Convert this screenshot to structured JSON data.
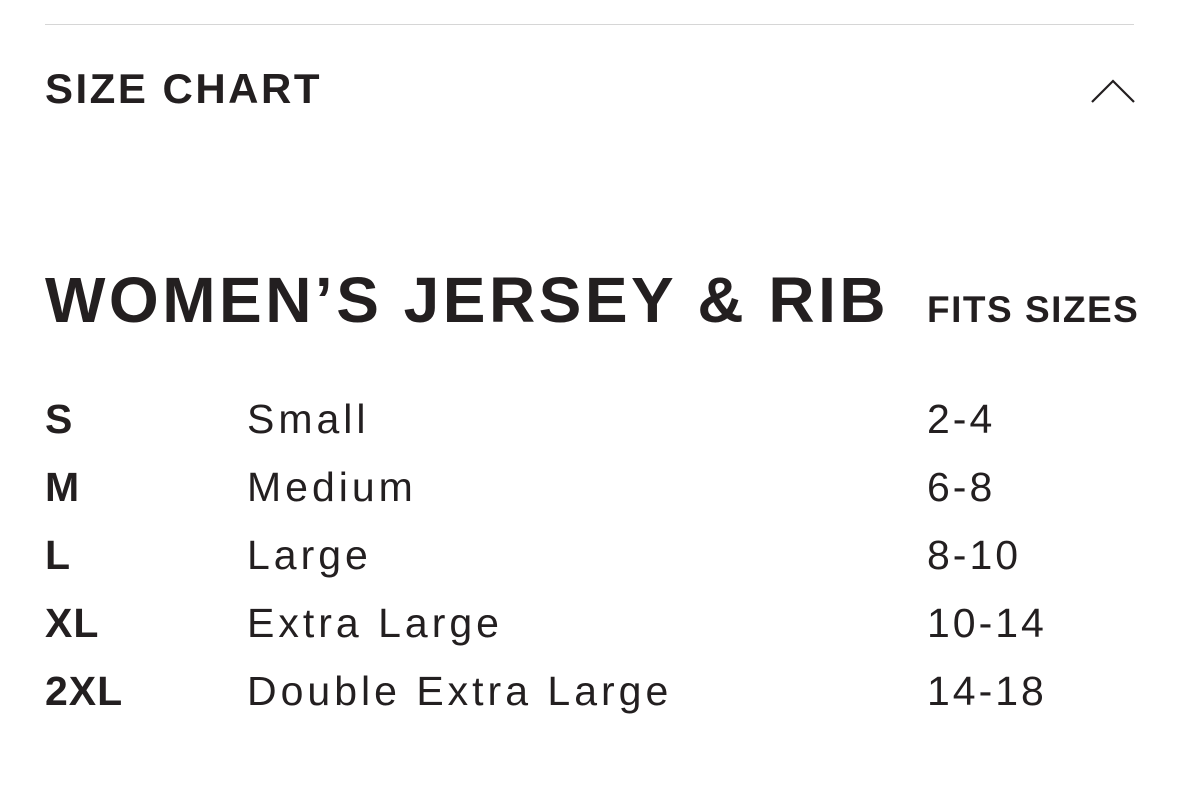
{
  "section": {
    "title": "SIZE CHART",
    "toggle_icon": "chevron-up-icon",
    "expanded": true
  },
  "chart": {
    "title": "WOMEN’S JERSEY & RIB",
    "fits_header": "FITS SIZES",
    "rows": [
      {
        "code": "S",
        "name": "Small",
        "fits": "2-4"
      },
      {
        "code": "M",
        "name": "Medium",
        "fits": "6-8"
      },
      {
        "code": "L",
        "name": "Large",
        "fits": "8-10"
      },
      {
        "code": "XL",
        "name": "Extra Large",
        "fits": "10-14"
      },
      {
        "code": "2XL",
        "name": "Double Extra Large",
        "fits": "14-18"
      }
    ]
  },
  "colors": {
    "text": "#231f20",
    "divider": "#d6d6d6"
  }
}
